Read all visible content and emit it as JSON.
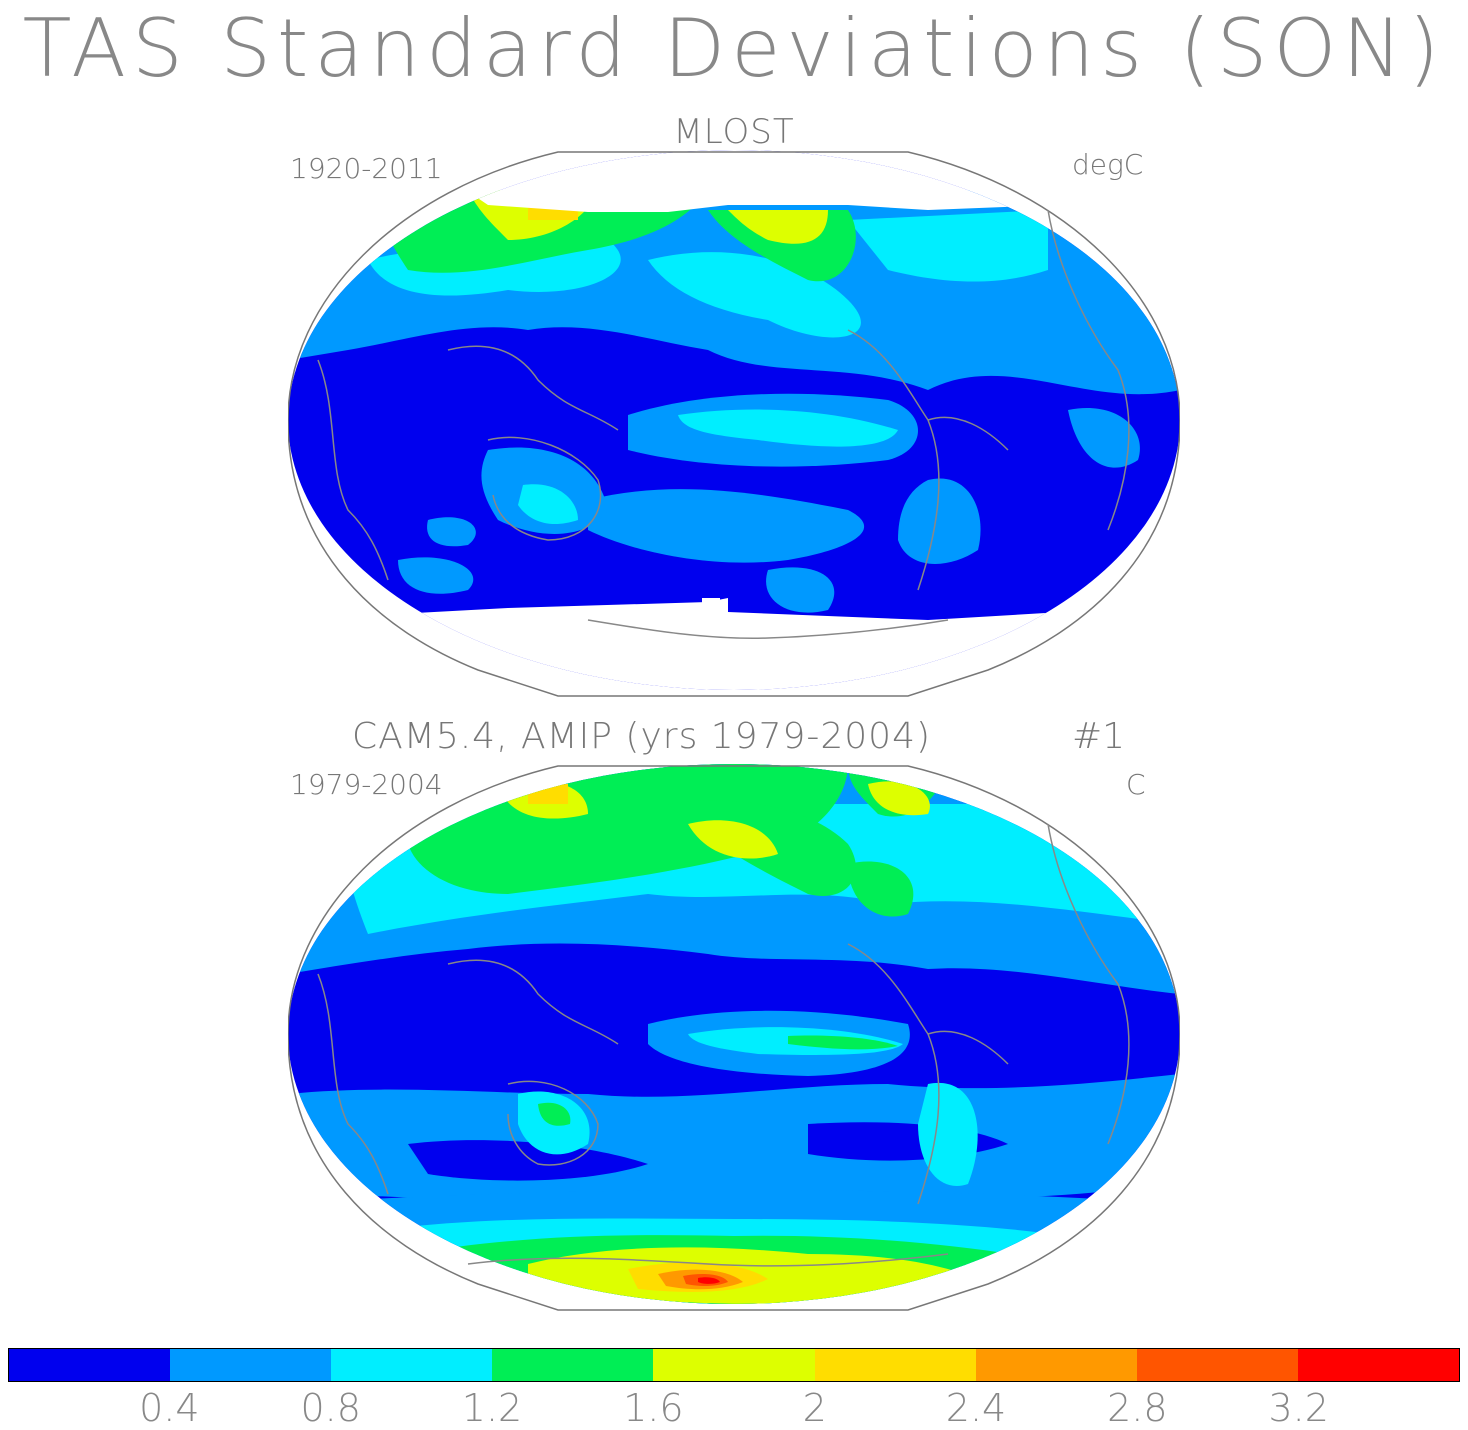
{
  "title": "TAS Standard Deviations (SON)",
  "panels": [
    {
      "title": "MLOST",
      "left_label": "1920-2011",
      "right_label": "degC"
    },
    {
      "title": "CAM5.4, AMIP (yrs 1979-2004)",
      "run_label": "#1",
      "left_label": "1979-2004",
      "right_label": "C"
    }
  ],
  "colorbar": {
    "colors": [
      "#0000ee",
      "#0099ff",
      "#00eeff",
      "#00ee55",
      "#ddff00",
      "#ffdd00",
      "#ff9900",
      "#ff5500",
      "#ff0000"
    ],
    "labels": [
      "0.4",
      "0.8",
      "1.2",
      "1.6",
      "2",
      "2.4",
      "2.8",
      "3.2"
    ]
  },
  "colors": {
    "land_outline": "#888888",
    "missing": "#ffffff"
  }
}
